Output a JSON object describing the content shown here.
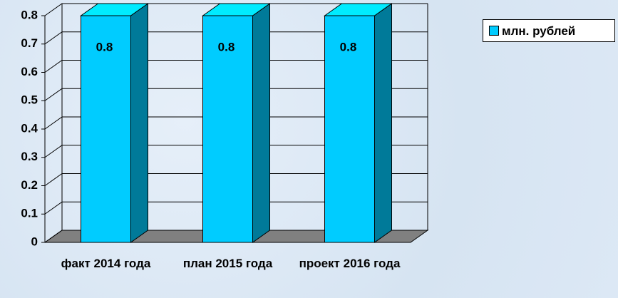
{
  "chart_data": {
    "type": "bar3d",
    "categories": [
      "факт 2014 года",
      "план 2015 года",
      "проект 2016 года"
    ],
    "series": [
      {
        "name": "млн. рублей",
        "color": "#00ccff",
        "values": [
          0.8,
          0.8,
          0.8
        ]
      }
    ],
    "ylim": [
      0,
      0.8
    ],
    "yticks": [
      0,
      0.1,
      0.2,
      0.3,
      0.4,
      0.5,
      0.6,
      0.7,
      0.8
    ],
    "grid": true,
    "legend": "top-right"
  }
}
